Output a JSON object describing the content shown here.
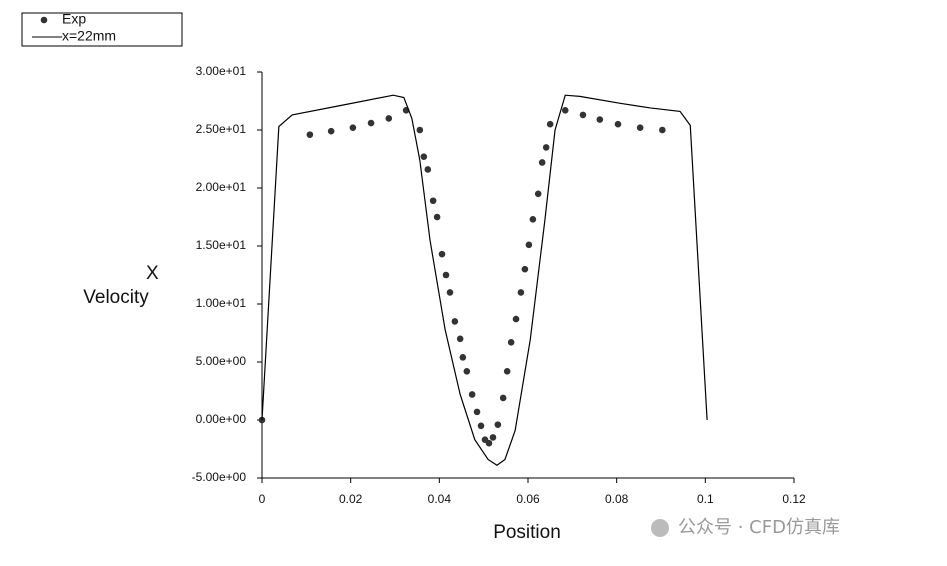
{
  "chart_data": {
    "type": "line",
    "xlabel": "Position",
    "ylabel": [
      "X",
      "Velocity"
    ],
    "xlim": [
      0,
      0.12
    ],
    "xticks": [
      0,
      0.02,
      0.04,
      0.06,
      0.08,
      0.1,
      0.12
    ],
    "ylim": [
      -5,
      30
    ],
    "yticks": [
      {
        "value": -5,
        "label": "-5.00e+00"
      },
      {
        "value": 0,
        "label": "0.00e+00"
      },
      {
        "value": 5,
        "label": "5.00e+00"
      },
      {
        "value": 10,
        "label": "1.00e+01"
      },
      {
        "value": 15,
        "label": "1.50e+01"
      },
      {
        "value": 20,
        "label": "2.00e+01"
      },
      {
        "value": 25,
        "label": "2.50e+01"
      },
      {
        "value": 30,
        "label": "3.00e+01"
      }
    ],
    "grid": false,
    "legend": "top-left",
    "series": [
      {
        "name": "Exp",
        "mark": "marker",
        "color": "#333333",
        "x": [
          0,
          0.0108,
          0.0156,
          0.0205,
          0.0246,
          0.0286,
          0.0325,
          0.0356,
          0.0365,
          0.0374,
          0.0386,
          0.0395,
          0.0406,
          0.0415,
          0.0424,
          0.0435,
          0.0447,
          0.0453,
          0.0462,
          0.0474,
          0.0485,
          0.0494,
          0.0503,
          0.0512,
          0.0521,
          0.0532,
          0.0544,
          0.0553,
          0.0562,
          0.0573,
          0.0584,
          0.0593,
          0.0602,
          0.0611,
          0.0623,
          0.0632,
          0.0641,
          0.065,
          0.0684,
          0.0724,
          0.0762,
          0.0803,
          0.0853,
          0.0903
        ],
        "values": [
          0,
          24.6,
          24.9,
          25.2,
          25.6,
          26.0,
          26.7,
          25.0,
          22.7,
          21.6,
          18.9,
          17.5,
          14.3,
          12.5,
          11.0,
          8.5,
          7.0,
          5.4,
          4.2,
          2.2,
          0.7,
          -0.5,
          -1.7,
          -2.0,
          -1.5,
          -0.4,
          1.9,
          4.2,
          6.7,
          8.7,
          11.0,
          13.0,
          15.1,
          17.3,
          19.5,
          22.2,
          23.5,
          25.5,
          26.7,
          26.3,
          25.9,
          25.5,
          25.2,
          25.0
        ]
      },
      {
        "name": "x=22mm",
        "mark": "line",
        "color": "#000000",
        "x": [
          0,
          0.0038,
          0.0068,
          0.0176,
          0.0296,
          0.032,
          0.0338,
          0.0356,
          0.0379,
          0.0413,
          0.0447,
          0.048,
          0.051,
          0.053,
          0.0548,
          0.0571,
          0.0605,
          0.0638,
          0.0661,
          0.0684,
          0.0717,
          0.0808,
          0.0876,
          0.0943,
          0.0966,
          0.1004
        ],
        "values": [
          0,
          25.3,
          26.3,
          27.1,
          28.0,
          27.8,
          26.0,
          22.4,
          15.5,
          7.8,
          2.2,
          -1.7,
          -3.4,
          -3.9,
          -3.4,
          -0.9,
          6.9,
          17.2,
          25.0,
          28.0,
          27.9,
          27.3,
          26.9,
          26.6,
          25.4,
          0
        ]
      }
    ]
  },
  "watermark": "公众号 · CFD仿真库"
}
